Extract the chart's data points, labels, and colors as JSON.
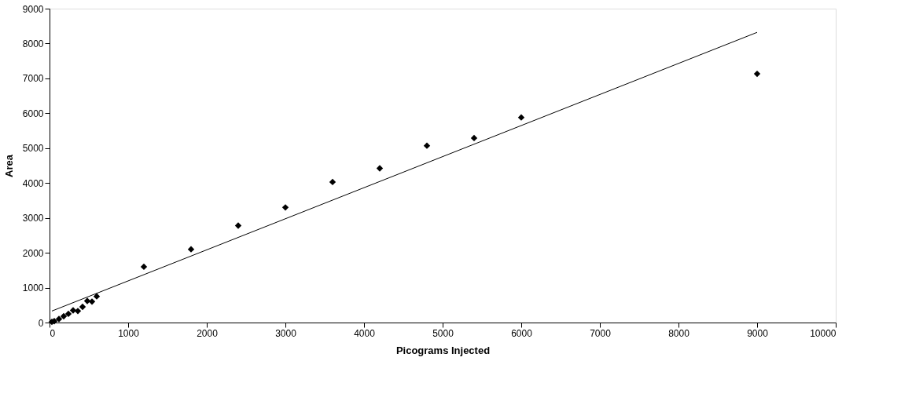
{
  "chart_data": {
    "type": "scatter",
    "xlabel": "Picograms Injected",
    "ylabel": "Area",
    "xlim": [
      0,
      10000
    ],
    "xticks": [
      0,
      1000,
      2000,
      3000,
      4000,
      5000,
      6000,
      7000,
      8000,
      9000,
      10000
    ],
    "ylim": [
      0,
      9000
    ],
    "yticks": [
      0,
      1000,
      2000,
      3000,
      4000,
      5000,
      6000,
      7000,
      8000,
      9000
    ],
    "grid": false,
    "marker": "diamond",
    "series": [
      {
        "color": "#000000",
        "x": [
          30,
          60,
          120,
          180,
          240,
          300,
          360,
          420,
          480,
          540,
          600,
          1200,
          1800,
          2400,
          3000,
          3600,
          4200,
          4800,
          5400,
          6000,
          9000
        ],
        "values": [
          20,
          40,
          100,
          180,
          250,
          350,
          330,
          450,
          620,
          600,
          750,
          1600,
          2100,
          2780,
          3300,
          4030,
          4420,
          5070,
          5290,
          5880,
          7130
        ]
      },
      {
        "type": "line",
        "color": "#000000",
        "line_style": "solid",
        "marker": "none",
        "x": [
          30,
          9000
        ],
        "values": [
          330,
          8320
        ]
      }
    ]
  }
}
